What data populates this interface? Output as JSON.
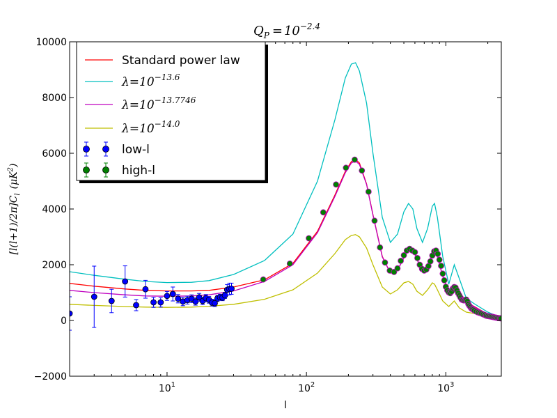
{
  "chart_data": {
    "type": "line",
    "title": "Q_P = 10^-2.4",
    "title_parts": {
      "var": "Q",
      "sub": "P",
      "base": "10",
      "exp": "−2.4"
    },
    "xlabel": "l",
    "ylabel": "[l(l+1)/2π]C_l (μK^2)",
    "ylabel_parts": {
      "main": "[l(l+1)/2π]C",
      "sub": "l",
      "unit": "(μK",
      "exp": "2",
      "close": ")"
    },
    "xscale": "log",
    "xlim": [
      2,
      2500
    ],
    "ylim": [
      -2000,
      10000
    ],
    "yticks": [
      -2000,
      0,
      2000,
      4000,
      6000,
      8000,
      10000
    ],
    "ytick_labels": [
      "−2000",
      "0",
      "2000",
      "4000",
      "6000",
      "8000",
      "10000"
    ],
    "xticks": [
      {
        "value": 10,
        "base": "10",
        "exp": "1"
      },
      {
        "value": 100,
        "base": "10",
        "exp": "2"
      },
      {
        "value": 1000,
        "base": "10",
        "exp": "3"
      }
    ],
    "legend_position": "upper-left",
    "legend": [
      {
        "label": "Standard power law",
        "kind": "line",
        "color": "#ff0000",
        "math": false
      },
      {
        "label": "λ=10^-13.6",
        "kind": "line",
        "color": "#00bfbf",
        "math": true,
        "base": "λ=10",
        "exp": "−13.6"
      },
      {
        "label": "λ=10^-13.7746",
        "kind": "line",
        "color": "#bf00bf",
        "math": true,
        "base": "λ=10",
        "exp": "−13.7746"
      },
      {
        "label": "λ=10^-14.0",
        "kind": "line",
        "color": "#bfbf00",
        "math": true,
        "base": "λ=10",
        "exp": "−14.0"
      },
      {
        "label": "low-l",
        "kind": "errorbar",
        "color": "#0000ff",
        "math": false
      },
      {
        "label": "high-l",
        "kind": "errorbar",
        "color": "#008000",
        "math": false
      }
    ],
    "series": [
      {
        "name": "Standard power law",
        "color": "#ff0000",
        "x": [
          2,
          3,
          5,
          7,
          10,
          15,
          20,
          30,
          50,
          80,
          120,
          160,
          190,
          210,
          225,
          240,
          270,
          300,
          350,
          400,
          450,
          500,
          540,
          580,
          620,
          680,
          740,
          800,
          830,
          870,
          950,
          1050,
          1150,
          1250,
          1400,
          1600,
          2000,
          2500
        ],
        "y": [
          1330,
          1230,
          1130,
          1080,
          1060,
          1060,
          1080,
          1200,
          1460,
          2050,
          3200,
          4500,
          5350,
          5700,
          5780,
          5650,
          4900,
          3800,
          2300,
          1700,
          1800,
          2250,
          2550,
          2580,
          2200,
          1800,
          1950,
          2400,
          2500,
          2300,
          1600,
          1050,
          1100,
          950,
          650,
          500,
          220,
          80
        ]
      },
      {
        "name": "λ=10^-13.6",
        "color": "#00bfbf",
        "x": [
          2,
          3,
          5,
          7,
          10,
          15,
          20,
          30,
          50,
          80,
          120,
          160,
          190,
          210,
          225,
          240,
          270,
          300,
          350,
          400,
          450,
          500,
          540,
          580,
          620,
          680,
          740,
          800,
          830,
          870,
          950,
          1050,
          1150,
          1250,
          1400,
          1600,
          2000,
          2500
        ],
        "y": [
          1750,
          1620,
          1480,
          1400,
          1360,
          1370,
          1430,
          1650,
          2150,
          3100,
          5000,
          7200,
          8700,
          9200,
          9250,
          8950,
          7800,
          6000,
          3700,
          2800,
          3100,
          3900,
          4200,
          4000,
          3300,
          2800,
          3300,
          4100,
          4200,
          3700,
          2300,
          1300,
          2000,
          1500,
          800,
          600,
          300,
          100
        ]
      },
      {
        "name": "λ=10^-13.7746",
        "color": "#bf00bf",
        "x": [
          2,
          3,
          5,
          7,
          10,
          15,
          20,
          30,
          50,
          80,
          120,
          160,
          190,
          210,
          225,
          240,
          270,
          300,
          350,
          400,
          450,
          500,
          540,
          580,
          620,
          680,
          740,
          800,
          830,
          870,
          950,
          1050,
          1150,
          1250,
          1400,
          1600,
          2000,
          2500
        ],
        "y": [
          1080,
          1000,
          920,
          880,
          870,
          880,
          920,
          1060,
          1400,
          2000,
          3150,
          4450,
          5300,
          5650,
          5720,
          5600,
          4880,
          3780,
          2280,
          1700,
          1800,
          2240,
          2540,
          2560,
          2190,
          1780,
          1930,
          2380,
          2480,
          2280,
          1580,
          1040,
          1080,
          940,
          640,
          490,
          210,
          75
        ]
      },
      {
        "name": "λ=10^-14.0",
        "color": "#bfbf00",
        "x": [
          2,
          3,
          5,
          7,
          10,
          15,
          20,
          30,
          50,
          80,
          120,
          160,
          190,
          210,
          225,
          240,
          270,
          300,
          350,
          400,
          450,
          500,
          540,
          580,
          620,
          680,
          740,
          800,
          830,
          870,
          950,
          1050,
          1150,
          1250,
          1400,
          1600,
          2000,
          2500
        ],
        "y": [
          580,
          540,
          500,
          480,
          470,
          480,
          510,
          580,
          760,
          1100,
          1700,
          2400,
          2900,
          3050,
          3080,
          3000,
          2600,
          2000,
          1200,
          950,
          1100,
          1350,
          1400,
          1300,
          1050,
          900,
          1100,
          1350,
          1300,
          1100,
          700,
          500,
          700,
          450,
          300,
          250,
          110,
          40
        ]
      }
    ],
    "points": [
      {
        "name": "low-l",
        "color": "#0000ff",
        "marker": "circle",
        "x": [
          2,
          3,
          4,
          5,
          6,
          7,
          8,
          9,
          10,
          11,
          12,
          13,
          14,
          15,
          16,
          17,
          18,
          19,
          20,
          21,
          22,
          23,
          24,
          25,
          26,
          27,
          28,
          29
        ],
        "y": [
          250,
          850,
          700,
          1400,
          550,
          1120,
          650,
          650,
          880,
          950,
          780,
          680,
          730,
          780,
          680,
          830,
          700,
          800,
          740,
          640,
          620,
          790,
          830,
          820,
          900,
          1100,
          1130,
          1140
        ],
        "err": [
          600,
          1100,
          420,
          560,
          200,
          320,
          180,
          170,
          160,
          250,
          150,
          150,
          140,
          140,
          130,
          140,
          130,
          130,
          120,
          120,
          120,
          110,
          110,
          110,
          110,
          190,
          210,
          200
        ]
      },
      {
        "name": "high-l",
        "color": "#008000",
        "edge": "#bf00bf",
        "marker": "circle",
        "x": [
          49,
          76,
          104,
          132,
          163,
          192,
          222,
          250,
          279,
          308,
          337,
          366,
          396,
          425,
          450,
          475,
          500,
          525,
          550,
          575,
          600,
          625,
          650,
          675,
          700,
          725,
          750,
          775,
          800,
          825,
          850,
          875,
          900,
          925,
          950,
          975,
          1000,
          1025,
          1050,
          1075,
          1100,
          1125,
          1150,
          1175,
          1200,
          1225,
          1250,
          1275,
          1300,
          1325,
          1350,
          1375,
          1400,
          1425,
          1450,
          1475,
          1500,
          1525,
          1550,
          1575,
          1600,
          1650,
          1700,
          1750,
          1800,
          1850,
          1900,
          1950,
          2000,
          2050,
          2100,
          2150,
          2200,
          2250,
          2300,
          2350,
          2400,
          2450,
          2500
        ],
        "y": [
          1470,
          2040,
          2950,
          3880,
          4880,
          5480,
          5770,
          5380,
          4620,
          3580,
          2620,
          2080,
          1790,
          1740,
          1870,
          2140,
          2340,
          2510,
          2570,
          2510,
          2450,
          2240,
          2000,
          1850,
          1790,
          1830,
          1950,
          2120,
          2330,
          2480,
          2510,
          2390,
          2180,
          1960,
          1680,
          1440,
          1210,
          1080,
          1010,
          980,
          1040,
          1150,
          1200,
          1180,
          1080,
          980,
          900,
          820,
          750,
          730,
          720,
          740,
          750,
          690,
          590,
          530,
          480,
          430,
          410,
          390,
          360,
          320,
          290,
          270,
          250,
          220,
          200,
          170,
          160,
          150,
          140,
          130,
          120,
          110,
          100,
          90,
          85,
          80,
          75
        ],
        "err": [
          30,
          30,
          30,
          35,
          40,
          45,
          50,
          45,
          40,
          35,
          30,
          25,
          25,
          25,
          25,
          25,
          25,
          25,
          25,
          25,
          25,
          25,
          25,
          25,
          25,
          25,
          25,
          25,
          25,
          25,
          25,
          25,
          25,
          25,
          25,
          25,
          25,
          25,
          25,
          25,
          25,
          25,
          25,
          25,
          25,
          25,
          25,
          25,
          25,
          25,
          25,
          25,
          25,
          25,
          25,
          25,
          25,
          25,
          25,
          25,
          25,
          25,
          25,
          25,
          25,
          25,
          25,
          25,
          25,
          25,
          25,
          25,
          25,
          25,
          25,
          25,
          25,
          25,
          25
        ]
      }
    ]
  }
}
